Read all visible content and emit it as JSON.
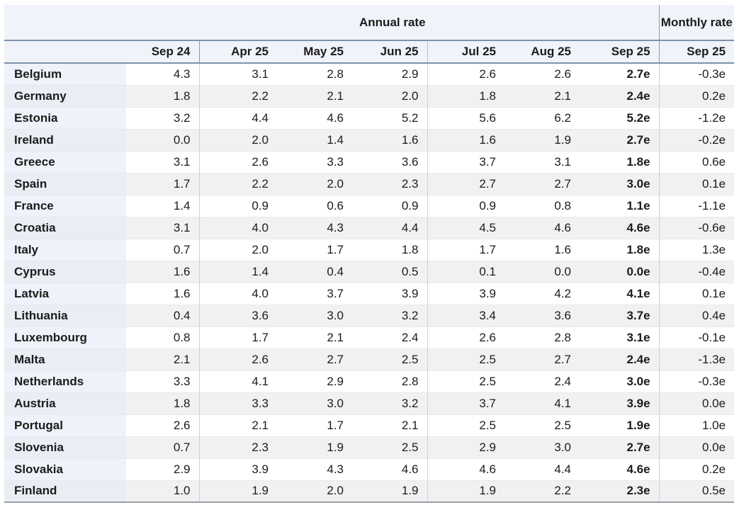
{
  "colors": {
    "header_bg": "#f0f3fa",
    "accent_border": "#7e92aa",
    "row_header_bg": "#eef2fa",
    "row_header_bg_alt": "#e9edf4",
    "row_bg": "#ffffff",
    "row_bg_alt": "#f1f1f2",
    "column_separator": "#ccd1d7",
    "bottom_border": "#9aa1a9",
    "text": "#1b1b1b"
  },
  "chart_data": {
    "type": "table",
    "annual": {
      "label": "Annual rate",
      "columns": [
        "Sep 24",
        "Apr 25",
        "May 25",
        "Jun 25",
        "Jul 25",
        "Aug 25",
        "Sep 25"
      ]
    },
    "monthly": {
      "label": "Monthly rate",
      "column": "Sep 25"
    },
    "rows": [
      {
        "country": "Belgium",
        "annual": [
          "4.3",
          "3.1",
          "2.8",
          "2.9",
          "2.6",
          "2.6",
          "2.7e"
        ],
        "monthly": "-0.3e"
      },
      {
        "country": "Germany",
        "annual": [
          "1.8",
          "2.2",
          "2.1",
          "2.0",
          "1.8",
          "2.1",
          "2.4e"
        ],
        "monthly": "0.2e"
      },
      {
        "country": "Estonia",
        "annual": [
          "3.2",
          "4.4",
          "4.6",
          "5.2",
          "5.6",
          "6.2",
          "5.2e"
        ],
        "monthly": "-1.2e"
      },
      {
        "country": "Ireland",
        "annual": [
          "0.0",
          "2.0",
          "1.4",
          "1.6",
          "1.6",
          "1.9",
          "2.7e"
        ],
        "monthly": "-0.2e"
      },
      {
        "country": "Greece",
        "annual": [
          "3.1",
          "2.6",
          "3.3",
          "3.6",
          "3.7",
          "3.1",
          "1.8e"
        ],
        "monthly": "0.6e"
      },
      {
        "country": "Spain",
        "annual": [
          "1.7",
          "2.2",
          "2.0",
          "2.3",
          "2.7",
          "2.7",
          "3.0e"
        ],
        "monthly": "0.1e"
      },
      {
        "country": "France",
        "annual": [
          "1.4",
          "0.9",
          "0.6",
          "0.9",
          "0.9",
          "0.8",
          "1.1e"
        ],
        "monthly": "-1.1e"
      },
      {
        "country": "Croatia",
        "annual": [
          "3.1",
          "4.0",
          "4.3",
          "4.4",
          "4.5",
          "4.6",
          "4.6e"
        ],
        "monthly": "-0.6e"
      },
      {
        "country": "Italy",
        "annual": [
          "0.7",
          "2.0",
          "1.7",
          "1.8",
          "1.7",
          "1.6",
          "1.8e"
        ],
        "monthly": "1.3e"
      },
      {
        "country": "Cyprus",
        "annual": [
          "1.6",
          "1.4",
          "0.4",
          "0.5",
          "0.1",
          "0.0",
          "0.0e"
        ],
        "monthly": "-0.4e"
      },
      {
        "country": "Latvia",
        "annual": [
          "1.6",
          "4.0",
          "3.7",
          "3.9",
          "3.9",
          "4.2",
          "4.1e"
        ],
        "monthly": "0.1e"
      },
      {
        "country": "Lithuania",
        "annual": [
          "0.4",
          "3.6",
          "3.0",
          "3.2",
          "3.4",
          "3.6",
          "3.7e"
        ],
        "monthly": "0.4e"
      },
      {
        "country": "Luxembourg",
        "annual": [
          "0.8",
          "1.7",
          "2.1",
          "2.4",
          "2.6",
          "2.8",
          "3.1e"
        ],
        "monthly": "-0.1e"
      },
      {
        "country": "Malta",
        "annual": [
          "2.1",
          "2.6",
          "2.7",
          "2.5",
          "2.5",
          "2.7",
          "2.4e"
        ],
        "monthly": "-1.3e"
      },
      {
        "country": "Netherlands",
        "annual": [
          "3.3",
          "4.1",
          "2.9",
          "2.8",
          "2.5",
          "2.4",
          "3.0e"
        ],
        "monthly": "-0.3e"
      },
      {
        "country": "Austria",
        "annual": [
          "1.8",
          "3.3",
          "3.0",
          "3.2",
          "3.7",
          "4.1",
          "3.9e"
        ],
        "monthly": "0.0e"
      },
      {
        "country": "Portugal",
        "annual": [
          "2.6",
          "2.1",
          "1.7",
          "2.1",
          "2.5",
          "2.5",
          "1.9e"
        ],
        "monthly": "1.0e"
      },
      {
        "country": "Slovenia",
        "annual": [
          "0.7",
          "2.3",
          "1.9",
          "2.5",
          "2.9",
          "3.0",
          "2.7e"
        ],
        "monthly": "0.0e"
      },
      {
        "country": "Slovakia",
        "annual": [
          "2.9",
          "3.9",
          "4.3",
          "4.6",
          "4.6",
          "4.4",
          "4.6e"
        ],
        "monthly": "0.2e"
      },
      {
        "country": "Finland",
        "annual": [
          "1.0",
          "1.9",
          "2.0",
          "1.9",
          "1.9",
          "2.2",
          "2.3e"
        ],
        "monthly": "0.5e"
      }
    ]
  }
}
